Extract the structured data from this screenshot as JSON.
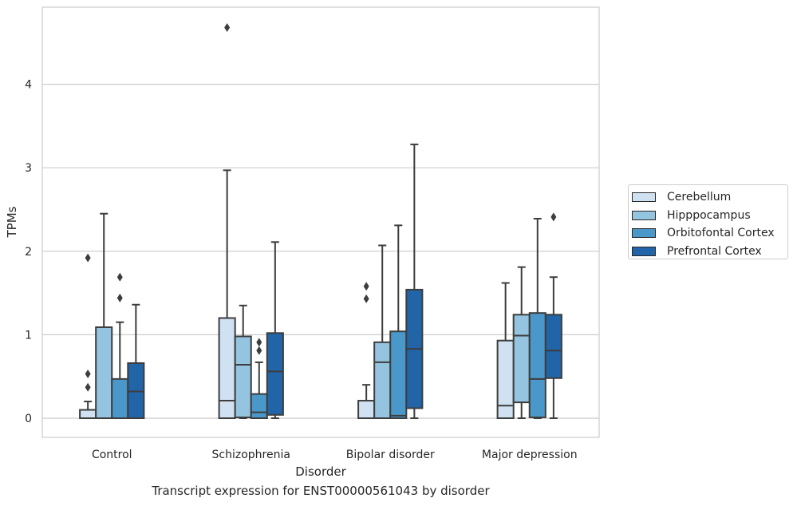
{
  "chart_data": {
    "type": "boxplot",
    "title": "Transcript expression for ENST00000561043 by disorder",
    "xlabel": "Disorder",
    "ylabel": "TPMs",
    "ylim": [
      -0.23,
      4.9
    ],
    "yticks": [
      0,
      1,
      2,
      3,
      4
    ],
    "grid": "horizontal",
    "legend_position": "right",
    "categories": [
      "Control",
      "Schizophrenia",
      "Bipolar disorder",
      "Major depression"
    ],
    "series": [
      {
        "name": "Cerebellum",
        "color": "#d0e1f2",
        "boxes": [
          {
            "whislo": 0,
            "q1": 0,
            "med": 0,
            "q3": 0.1,
            "whishi": 0.2,
            "fliers": [
              0.37,
              0.53,
              1.92
            ]
          },
          {
            "whislo": 0,
            "q1": 0,
            "med": 0.21,
            "q3": 1.2,
            "whishi": 2.97,
            "fliers": [
              4.68
            ]
          },
          {
            "whislo": 0,
            "q1": 0,
            "med": 0,
            "q3": 0.21,
            "whishi": 0.4,
            "fliers": [
              1.43,
              1.58
            ]
          },
          {
            "whislo": 0,
            "q1": 0,
            "med": 0.15,
            "q3": 0.93,
            "whishi": 1.62,
            "fliers": []
          }
        ]
      },
      {
        "name": "Hipppocampus",
        "color": "#94c4df",
        "boxes": [
          {
            "whislo": 0,
            "q1": 0,
            "med": 0,
            "q3": 1.09,
            "whishi": 2.45,
            "fliers": []
          },
          {
            "whislo": 0,
            "q1": 0.01,
            "med": 0.64,
            "q3": 0.98,
            "whishi": 1.35,
            "fliers": []
          },
          {
            "whislo": 0,
            "q1": 0,
            "med": 0.67,
            "q3": 0.91,
            "whishi": 2.07,
            "fliers": []
          },
          {
            "whislo": 0,
            "q1": 0.19,
            "med": 0.99,
            "q3": 1.24,
            "whishi": 1.81,
            "fliers": []
          }
        ]
      },
      {
        "name": "Orbitofontal Cortex",
        "color": "#4a98c9",
        "boxes": [
          {
            "whislo": 0,
            "q1": 0,
            "med": 0,
            "q3": 0.47,
            "whishi": 1.15,
            "fliers": [
              1.44,
              1.69
            ]
          },
          {
            "whislo": 0,
            "q1": 0,
            "med": 0.07,
            "q3": 0.29,
            "whishi": 0.67,
            "fliers": [
              0.81,
              0.91
            ]
          },
          {
            "whislo": 0,
            "q1": 0,
            "med": 0.03,
            "q3": 1.04,
            "whishi": 2.31,
            "fliers": []
          },
          {
            "whislo": 0,
            "q1": 0.01,
            "med": 0.47,
            "q3": 1.26,
            "whishi": 2.39,
            "fliers": []
          }
        ]
      },
      {
        "name": "Prefrontal Cortex",
        "color": "#2264a8",
        "boxes": [
          {
            "whislo": 0,
            "q1": 0,
            "med": 0.32,
            "q3": 0.66,
            "whishi": 1.36,
            "fliers": []
          },
          {
            "whislo": 0,
            "q1": 0.04,
            "med": 0.56,
            "q3": 1.02,
            "whishi": 2.11,
            "fliers": []
          },
          {
            "whislo": 0,
            "q1": 0.12,
            "med": 0.83,
            "q3": 1.54,
            "whishi": 3.28,
            "fliers": []
          },
          {
            "whislo": 0,
            "q1": 0.48,
            "med": 0.81,
            "q3": 1.24,
            "whishi": 1.69,
            "fliers": [
              2.41
            ]
          }
        ]
      }
    ]
  }
}
